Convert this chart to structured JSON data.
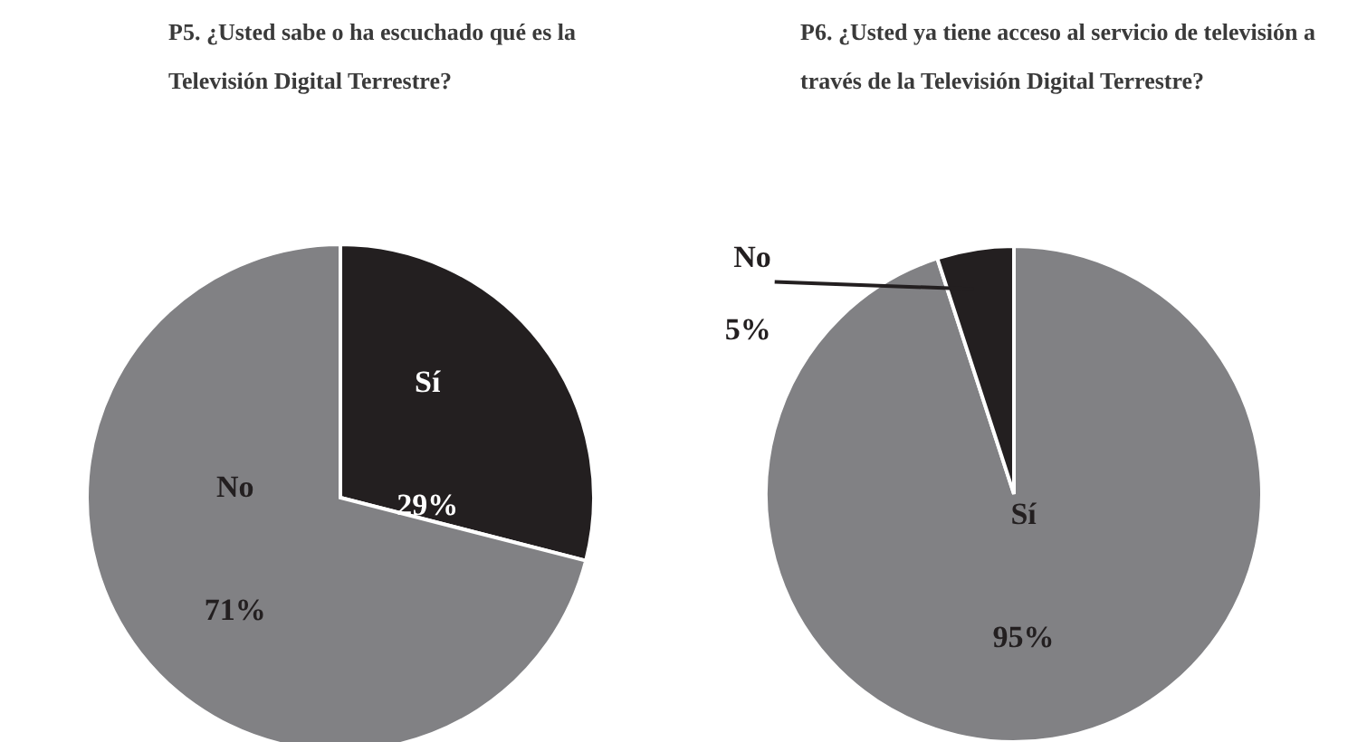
{
  "chart_data": [
    {
      "type": "pie",
      "title": "P5. ¿Usted sabe o ha escuchado qué es la Televisión Digital Terrestre?",
      "categories": [
        "Sí",
        "No"
      ],
      "values": [
        29,
        71
      ],
      "colors": [
        "#231f20",
        "#818184"
      ],
      "value_labels": [
        "29%",
        "71%"
      ]
    },
    {
      "type": "pie",
      "title": "P6. ¿Usted ya tiene acceso al servicio de televisión a través de la Televisión Digital Terrestre?",
      "categories": [
        "Sí",
        "No"
      ],
      "values": [
        95,
        5
      ],
      "colors": [
        "#818184",
        "#231f20"
      ],
      "value_labels": [
        "95%",
        "5%"
      ]
    }
  ]
}
